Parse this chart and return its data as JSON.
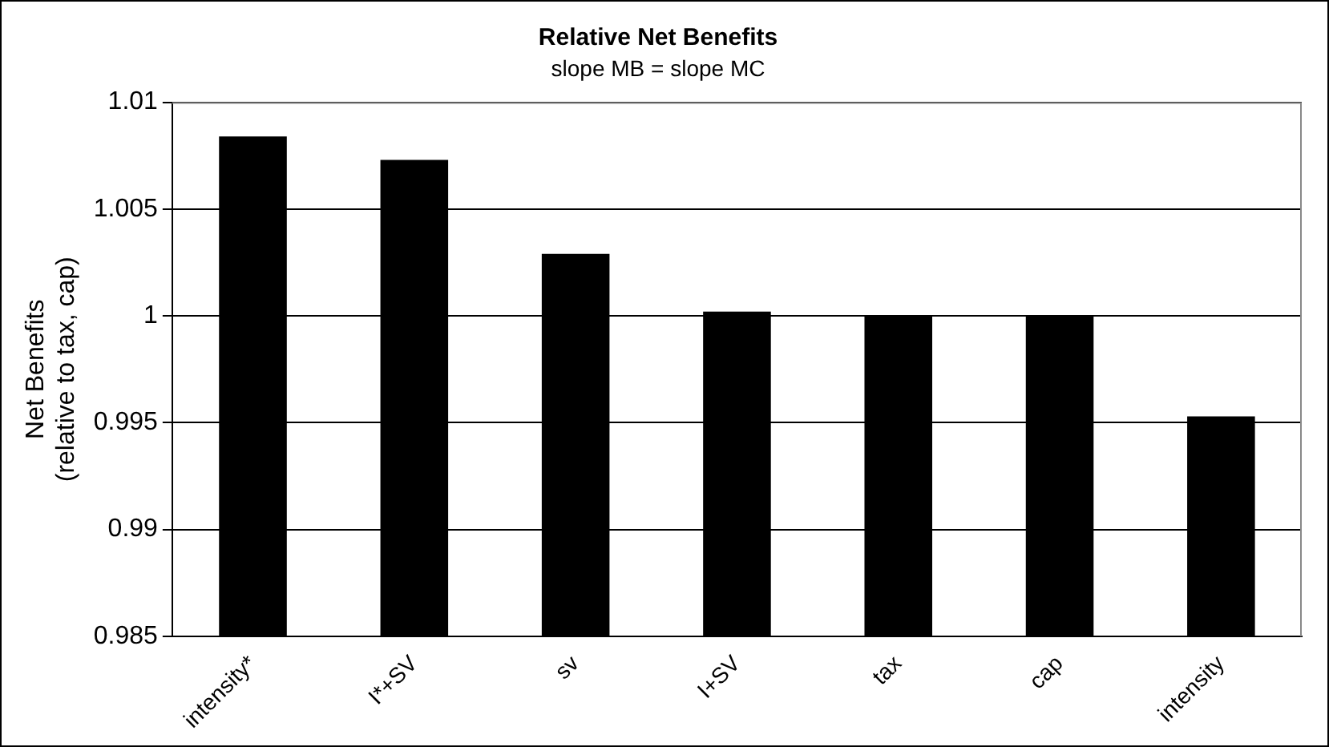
{
  "chart_data": {
    "type": "bar",
    "title": "Relative Net Benefits",
    "subtitle": "slope MB = slope MC",
    "ylabel": "Net Benefits\n(relative to tax, cap)",
    "categories": [
      "intensity*",
      "I*+SV",
      "sv",
      "I+SV",
      "tax",
      "cap",
      "intensity"
    ],
    "values": [
      1.0084,
      1.0073,
      1.0029,
      1.0002,
      1.0,
      1.0,
      0.9953
    ],
    "color": "#000000",
    "ylim": [
      0.985,
      1.01
    ],
    "yticks": [
      0.985,
      0.99,
      0.995,
      1,
      1.005,
      1.01
    ],
    "grid": "y",
    "legend": false
  }
}
